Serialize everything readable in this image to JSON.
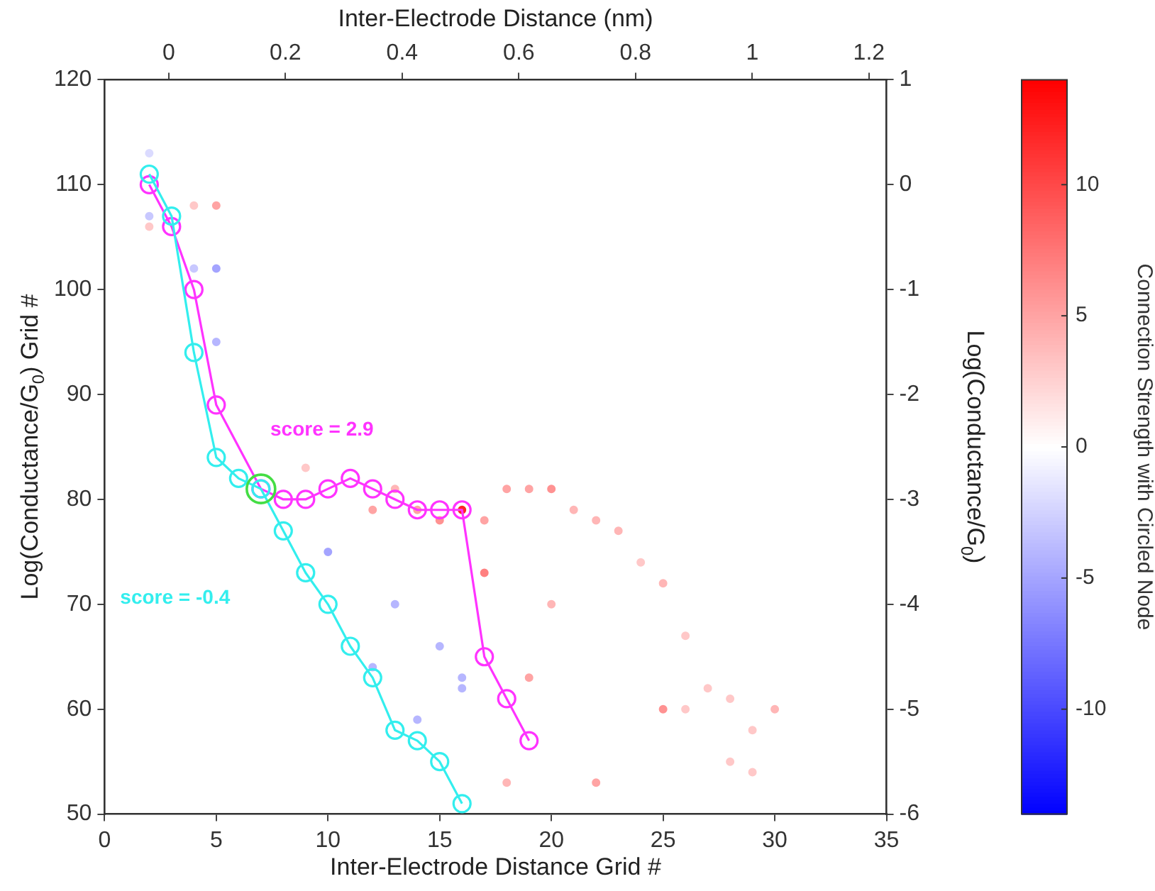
{
  "chart_data": {
    "type": "scatter",
    "xlabel": "Inter-Electrode Distance Grid #",
    "x2label": "Inter-Electrode Distance (nm)",
    "ylabel": "Log(Conductance/G$_{0}$) Grid #",
    "y2label": "Log(Conductance/G$_{0}$)",
    "clabel": "Connection Strength with Circled Node",
    "xlim": [
      0,
      35
    ],
    "xticks": [
      0,
      5,
      10,
      15,
      20,
      25,
      30,
      35
    ],
    "x2lim": [
      -0.11,
      1.23
    ],
    "x2ticks": [
      0,
      0.2,
      0.4,
      0.6,
      0.8,
      1,
      1.2
    ],
    "ylim": [
      50,
      120
    ],
    "yticks": [
      50,
      60,
      70,
      80,
      90,
      100,
      110,
      120
    ],
    "y2lim": [
      -6,
      1
    ],
    "y2ticks": [
      -6,
      -5,
      -4,
      -3,
      -2,
      -1,
      0,
      1
    ],
    "clim": [
      -14,
      14
    ],
    "cticks": [
      -10,
      -5,
      0,
      5,
      10
    ],
    "marker": "circle",
    "series": [
      {
        "type": "scatter",
        "x": [
          2,
          2,
          2,
          4,
          5,
          5,
          5,
          4,
          9,
          18,
          19,
          20,
          16,
          17,
          22,
          21,
          23,
          24,
          25,
          26,
          17,
          10,
          13,
          15,
          12,
          16,
          16,
          14,
          18,
          22,
          25,
          26,
          28,
          30,
          27,
          29,
          28,
          29,
          15,
          14,
          12,
          13,
          20,
          19
        ],
        "values": [
          113,
          107,
          106,
          108,
          108,
          102,
          95,
          102,
          83,
          81,
          81,
          81,
          79,
          78,
          78,
          79,
          77,
          74,
          72,
          67,
          73,
          75,
          70,
          66,
          64,
          63,
          62,
          59,
          53,
          53,
          60,
          60,
          61,
          60,
          62,
          58,
          55,
          54,
          78,
          79,
          79,
          81,
          70,
          63
        ],
        "cvalues": [
          -2,
          -3,
          3,
          3,
          5,
          -5,
          -4,
          -3,
          3,
          5,
          5,
          6,
          12,
          5,
          4,
          4,
          4,
          3,
          4,
          3,
          7,
          -5,
          -4,
          -4,
          -4,
          -4,
          -4,
          -4,
          4,
          5,
          6,
          3,
          3,
          4,
          3,
          3,
          3,
          3,
          6,
          5,
          5,
          4,
          4,
          5
        ],
        "colors": [
          "#dbdbff",
          "#c8c8ff",
          "#ffc8c8",
          "#ffc8c8",
          "#ffa4a4",
          "#a4a4ff",
          "#b6b6ff",
          "#c8c8ff",
          "#ffc8c8",
          "#ffa4a4",
          "#ffa4a4",
          "#ff9292",
          "#ff2424",
          "#ffa4a4",
          "#ffb6b6",
          "#ffb6b6",
          "#ffb6b6",
          "#ffc8c8",
          "#ffb6b6",
          "#ffc8c8",
          "#ff8080",
          "#a4a4ff",
          "#b6b6ff",
          "#b6b6ff",
          "#b6b6ff",
          "#b6b6ff",
          "#b6b6ff",
          "#b6b6ff",
          "#ffb6b6",
          "#ffa4a4",
          "#ff9292",
          "#ffc8c8",
          "#ffc8c8",
          "#ffb6b6",
          "#ffc8c8",
          "#ffc8c8",
          "#ffc8c8",
          "#ffc8c8",
          "#ff9292",
          "#ffa4a4",
          "#ffa4a4",
          "#ffb6b6",
          "#ffb6b6",
          "#ffa4a4"
        ]
      },
      {
        "type": "line",
        "color": "#ff33ff",
        "x": [
          2,
          3,
          4,
          5,
          7,
          8,
          9,
          10,
          11,
          12,
          13,
          14,
          15,
          16,
          17,
          18,
          19
        ],
        "values": [
          110,
          106,
          100,
          89,
          81,
          80,
          80,
          81,
          82,
          81,
          80,
          79,
          79,
          79,
          65,
          61,
          57
        ]
      },
      {
        "type": "line",
        "color": "#33eeee",
        "x": [
          2,
          3,
          4,
          5,
          6,
          7,
          8,
          9,
          10,
          11,
          12,
          13,
          14,
          15,
          16
        ],
        "values": [
          111,
          107,
          94,
          84,
          82,
          81,
          77,
          73,
          70,
          66,
          63,
          58,
          57,
          55,
          51
        ]
      },
      {
        "type": "scatter",
        "color": "#44dd44",
        "x": [
          7
        ],
        "values": [
          81
        ]
      }
    ],
    "annotations": [
      "score = 2.9",
      "score = -0.4"
    ]
  }
}
